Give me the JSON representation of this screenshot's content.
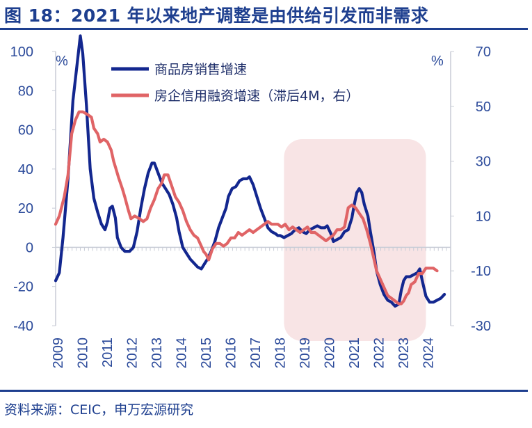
{
  "title": "图 18：2021 年以来地产调整是由供给引发而非需求",
  "source": "资料来源：CEIC，申万宏源研究",
  "colors": {
    "brand": "#1e3f8f",
    "series_sales": "#13278f",
    "series_credit": "#e06466",
    "highlight": "#f8e4e5",
    "axis": "#c8ccd6"
  },
  "chart_data": {
    "type": "line",
    "left_axis": {
      "unit": "%",
      "ylim": [
        -40,
        100
      ],
      "ticks": [
        "100",
        "80",
        "60",
        "40",
        "20",
        "0",
        "-20",
        "-40"
      ]
    },
    "right_axis": {
      "unit": "%",
      "ylim": [
        -30,
        70
      ],
      "ticks": [
        "70",
        "50",
        "30",
        "10",
        "-10",
        "-30"
      ]
    },
    "xlim": [
      2009.0,
      2025.0
    ],
    "x_ticks": [
      "2009",
      "2010",
      "2011",
      "2012",
      "2013",
      "2014",
      "2015",
      "2016",
      "2017",
      "2018",
      "2019",
      "2020",
      "2021",
      "2022",
      "2023",
      "2024"
    ],
    "highlight_range": [
      2018.25,
      2024.0
    ],
    "legend_position": "top-center",
    "series": [
      {
        "name": "商品房销售增速",
        "axis": "left",
        "points": [
          [
            2009.0,
            -17
          ],
          [
            2009.15,
            -13
          ],
          [
            2009.3,
            5
          ],
          [
            2009.5,
            35
          ],
          [
            2009.7,
            75
          ],
          [
            2009.9,
            97
          ],
          [
            2010.0,
            108
          ],
          [
            2010.1,
            99
          ],
          [
            2010.25,
            72
          ],
          [
            2010.4,
            40
          ],
          [
            2010.55,
            25
          ],
          [
            2010.7,
            18
          ],
          [
            2010.85,
            12
          ],
          [
            2011.0,
            9
          ],
          [
            2011.1,
            13
          ],
          [
            2011.2,
            20
          ],
          [
            2011.3,
            21
          ],
          [
            2011.42,
            15
          ],
          [
            2011.5,
            5
          ],
          [
            2011.65,
            0
          ],
          [
            2011.8,
            -2
          ],
          [
            2012.0,
            -2
          ],
          [
            2012.15,
            0
          ],
          [
            2012.3,
            8
          ],
          [
            2012.45,
            20
          ],
          [
            2012.6,
            30
          ],
          [
            2012.75,
            38
          ],
          [
            2012.9,
            43
          ],
          [
            2013.0,
            43
          ],
          [
            2013.15,
            38
          ],
          [
            2013.3,
            33
          ],
          [
            2013.45,
            30
          ],
          [
            2013.6,
            27
          ],
          [
            2013.75,
            22
          ],
          [
            2013.9,
            15
          ],
          [
            2014.0,
            8
          ],
          [
            2014.15,
            0
          ],
          [
            2014.3,
            -3
          ],
          [
            2014.45,
            -6
          ],
          [
            2014.6,
            -8
          ],
          [
            2014.75,
            -10
          ],
          [
            2014.9,
            -11
          ],
          [
            2015.0,
            -9
          ],
          [
            2015.15,
            -6
          ],
          [
            2015.3,
            -2
          ],
          [
            2015.45,
            3
          ],
          [
            2015.6,
            10
          ],
          [
            2015.75,
            15
          ],
          [
            2015.9,
            20
          ],
          [
            2016.0,
            26
          ],
          [
            2016.15,
            30
          ],
          [
            2016.3,
            31
          ],
          [
            2016.45,
            34
          ],
          [
            2016.6,
            35
          ],
          [
            2016.75,
            35
          ],
          [
            2016.85,
            36
          ],
          [
            2017.0,
            32
          ],
          [
            2017.15,
            26
          ],
          [
            2017.3,
            20
          ],
          [
            2017.45,
            15
          ],
          [
            2017.6,
            10
          ],
          [
            2017.75,
            8
          ],
          [
            2017.9,
            7
          ],
          [
            2018.0,
            6
          ],
          [
            2018.1,
            6
          ],
          [
            2018.25,
            5
          ],
          [
            2018.4,
            6
          ],
          [
            2018.55,
            7
          ],
          [
            2018.7,
            9
          ],
          [
            2018.85,
            10
          ],
          [
            2019.0,
            8
          ],
          [
            2019.15,
            7
          ],
          [
            2019.3,
            9
          ],
          [
            2019.45,
            10
          ],
          [
            2019.6,
            11
          ],
          [
            2019.75,
            10
          ],
          [
            2019.9,
            10
          ],
          [
            2020.0,
            11
          ],
          [
            2020.15,
            7
          ],
          [
            2020.25,
            3
          ],
          [
            2020.4,
            4
          ],
          [
            2020.55,
            5
          ],
          [
            2020.7,
            8
          ],
          [
            2020.85,
            9
          ],
          [
            2021.0,
            15
          ],
          [
            2021.1,
            22
          ],
          [
            2021.2,
            28
          ],
          [
            2021.3,
            30
          ],
          [
            2021.4,
            28
          ],
          [
            2021.5,
            22
          ],
          [
            2021.65,
            16
          ],
          [
            2021.75,
            8
          ],
          [
            2021.9,
            -3
          ],
          [
            2022.0,
            -12
          ],
          [
            2022.15,
            -19
          ],
          [
            2022.3,
            -24
          ],
          [
            2022.45,
            -27
          ],
          [
            2022.6,
            -28
          ],
          [
            2022.75,
            -30
          ],
          [
            2022.9,
            -29
          ],
          [
            2023.0,
            -22
          ],
          [
            2023.1,
            -17
          ],
          [
            2023.2,
            -15
          ],
          [
            2023.35,
            -15
          ],
          [
            2023.5,
            -14
          ],
          [
            2023.65,
            -13
          ],
          [
            2023.75,
            -11
          ],
          [
            2023.85,
            -17
          ],
          [
            2024.0,
            -25
          ],
          [
            2024.15,
            -28
          ],
          [
            2024.3,
            -28
          ],
          [
            2024.45,
            -27
          ],
          [
            2024.6,
            -26
          ],
          [
            2024.75,
            -24
          ]
        ]
      },
      {
        "name": "房企信用融资增速（滞后4M，右）",
        "axis": "right",
        "points": [
          [
            2009.0,
            7
          ],
          [
            2009.15,
            10
          ],
          [
            2009.35,
            17
          ],
          [
            2009.5,
            25
          ],
          [
            2009.65,
            40
          ],
          [
            2009.8,
            45
          ],
          [
            2009.95,
            48
          ],
          [
            2010.1,
            48
          ],
          [
            2010.3,
            47
          ],
          [
            2010.45,
            46
          ],
          [
            2010.55,
            42
          ],
          [
            2010.7,
            40
          ],
          [
            2010.8,
            37
          ],
          [
            2010.95,
            38
          ],
          [
            2011.1,
            37
          ],
          [
            2011.25,
            34
          ],
          [
            2011.35,
            30
          ],
          [
            2011.45,
            27
          ],
          [
            2011.55,
            24
          ],
          [
            2011.7,
            20
          ],
          [
            2011.8,
            17
          ],
          [
            2011.95,
            12
          ],
          [
            2012.05,
            9
          ],
          [
            2012.2,
            10
          ],
          [
            2012.4,
            9
          ],
          [
            2012.55,
            8
          ],
          [
            2012.7,
            9
          ],
          [
            2012.85,
            13
          ],
          [
            2013.0,
            16
          ],
          [
            2013.15,
            20
          ],
          [
            2013.3,
            22
          ],
          [
            2013.4,
            25
          ],
          [
            2013.55,
            25
          ],
          [
            2013.7,
            21
          ],
          [
            2013.85,
            17
          ],
          [
            2014.0,
            15
          ],
          [
            2014.15,
            12
          ],
          [
            2014.3,
            8
          ],
          [
            2014.45,
            5
          ],
          [
            2014.6,
            3
          ],
          [
            2014.75,
            2
          ],
          [
            2014.9,
            -1
          ],
          [
            2015.0,
            -3
          ],
          [
            2015.1,
            -4
          ],
          [
            2015.2,
            -6
          ],
          [
            2015.35,
            -2
          ],
          [
            2015.5,
            0
          ],
          [
            2015.65,
            0
          ],
          [
            2015.8,
            -1
          ],
          [
            2015.95,
            0
          ],
          [
            2016.1,
            2
          ],
          [
            2016.25,
            2
          ],
          [
            2016.4,
            4
          ],
          [
            2016.55,
            3
          ],
          [
            2016.7,
            4
          ],
          [
            2016.85,
            5
          ],
          [
            2017.0,
            4
          ],
          [
            2017.15,
            5
          ],
          [
            2017.3,
            6
          ],
          [
            2017.45,
            7
          ],
          [
            2017.6,
            8
          ],
          [
            2017.75,
            7
          ],
          [
            2017.9,
            7
          ],
          [
            2018.0,
            7
          ],
          [
            2018.15,
            6
          ],
          [
            2018.3,
            7
          ],
          [
            2018.45,
            5
          ],
          [
            2018.6,
            6
          ],
          [
            2018.75,
            5
          ],
          [
            2018.9,
            4
          ],
          [
            2019.05,
            5
          ],
          [
            2019.2,
            6
          ],
          [
            2019.35,
            4
          ],
          [
            2019.5,
            4
          ],
          [
            2019.65,
            3
          ],
          [
            2019.8,
            2
          ],
          [
            2019.95,
            1
          ],
          [
            2020.1,
            2
          ],
          [
            2020.25,
            3
          ],
          [
            2020.4,
            5
          ],
          [
            2020.55,
            5
          ],
          [
            2020.7,
            6
          ],
          [
            2020.85,
            13
          ],
          [
            2021.0,
            14
          ],
          [
            2021.15,
            13
          ],
          [
            2021.3,
            11
          ],
          [
            2021.45,
            9
          ],
          [
            2021.6,
            5
          ],
          [
            2021.75,
            0
          ],
          [
            2021.9,
            -6
          ],
          [
            2022.0,
            -10
          ],
          [
            2022.15,
            -13
          ],
          [
            2022.3,
            -16
          ],
          [
            2022.45,
            -19
          ],
          [
            2022.6,
            -20
          ],
          [
            2022.75,
            -21
          ],
          [
            2022.9,
            -22
          ],
          [
            2023.0,
            -22
          ],
          [
            2023.1,
            -21
          ],
          [
            2023.2,
            -19
          ],
          [
            2023.3,
            -18
          ],
          [
            2023.4,
            -15
          ],
          [
            2023.55,
            -14
          ],
          [
            2023.7,
            -11
          ],
          [
            2023.85,
            -11
          ],
          [
            2024.0,
            -9
          ],
          [
            2024.15,
            -9
          ],
          [
            2024.3,
            -9
          ],
          [
            2024.45,
            -10
          ]
        ]
      }
    ]
  }
}
